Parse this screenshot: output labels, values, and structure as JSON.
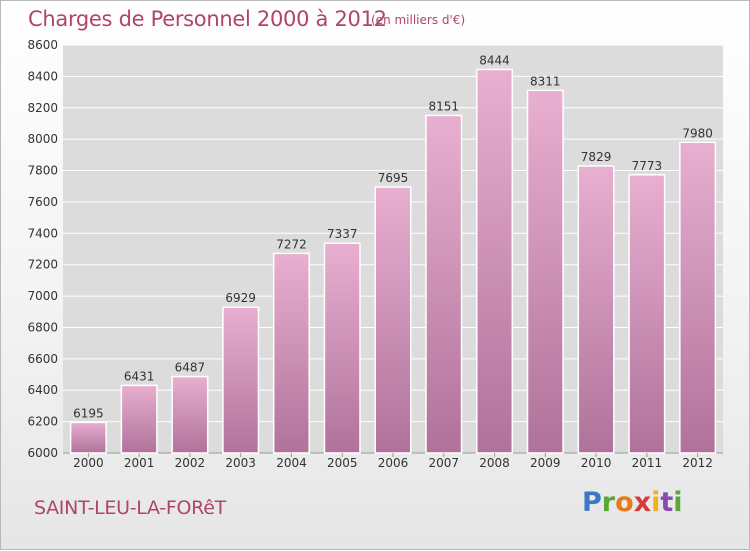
{
  "title": "Charges de Personnel 2000 à 2012",
  "unit": "(en milliers d'€)",
  "commune": "SAINT-LEU-LA-FORêT",
  "logo": {
    "brand": "Proxiti",
    "letters": [
      "P",
      "r",
      "o",
      "x",
      "i",
      "t",
      "i"
    ]
  },
  "colors": {
    "title": "#b0446f",
    "bar_top": "#e8afd0",
    "bar_bottom": "#b0729a",
    "plot_background": "#dcdcdc",
    "grid": "#ffffff"
  },
  "chart_data": {
    "type": "bar",
    "title": "Charges de Personnel 2000 à 2012",
    "subtitle": "(en milliers d'€)",
    "xlabel": "",
    "ylabel": "",
    "categories": [
      "2000",
      "2001",
      "2002",
      "2003",
      "2004",
      "2005",
      "2006",
      "2007",
      "2008",
      "2009",
      "2010",
      "2011",
      "2012"
    ],
    "values": [
      6195,
      6431,
      6487,
      6929,
      7272,
      7337,
      7695,
      8151,
      8444,
      8311,
      7829,
      7773,
      7980
    ],
    "ylim": [
      6000,
      8600
    ],
    "yticks": [
      6000,
      6200,
      6400,
      6600,
      6800,
      7000,
      7200,
      7400,
      7600,
      7800,
      8000,
      8200,
      8400,
      8600
    ],
    "grid": true,
    "data_labels": true
  }
}
